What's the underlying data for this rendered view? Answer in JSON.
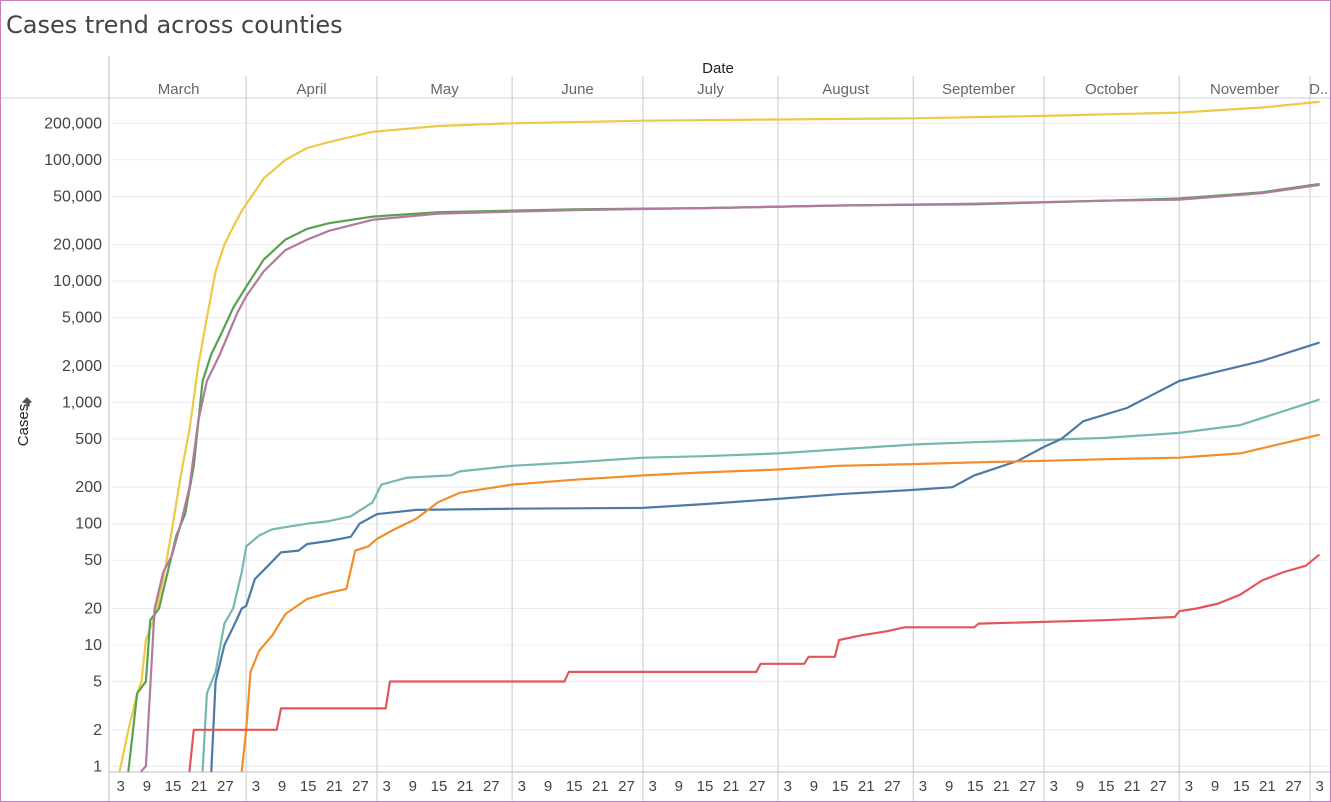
{
  "title": "Cases trend across counties",
  "chart_data": {
    "type": "line",
    "title": "Cases trend across counties",
    "xlabel": "Date",
    "ylabel": "Cases",
    "yscale": "log",
    "ylim": [
      0.8,
      300000
    ],
    "grid": true,
    "legend": "none",
    "months": [
      {
        "label": "March",
        "start": 0,
        "days": 31
      },
      {
        "label": "April",
        "start": 31,
        "days": 30
      },
      {
        "label": "May",
        "start": 61,
        "days": 31
      },
      {
        "label": "June",
        "start": 92,
        "days": 30
      },
      {
        "label": "July",
        "start": 122,
        "days": 31
      },
      {
        "label": "August",
        "start": 153,
        "days": 31
      },
      {
        "label": "September",
        "start": 184,
        "days": 30
      },
      {
        "label": "October",
        "start": 214,
        "days": 31
      },
      {
        "label": "November",
        "start": 245,
        "days": 30
      },
      {
        "label": "D..",
        "start": 275,
        "days": 4
      }
    ],
    "day_ticks": [
      3,
      9,
      15,
      21,
      27
    ],
    "y_ticks": [
      {
        "v": 1,
        "label": "1"
      },
      {
        "v": 2,
        "label": "2"
      },
      {
        "v": 5,
        "label": "5"
      },
      {
        "v": 10,
        "label": "10"
      },
      {
        "v": 20,
        "label": "20"
      },
      {
        "v": 50,
        "label": "50"
      },
      {
        "v": 100,
        "label": "100"
      },
      {
        "v": 200,
        "label": "200"
      },
      {
        "v": 500,
        "label": "500"
      },
      {
        "v": 1000,
        "label": "1,000"
      },
      {
        "v": 2000,
        "label": "2,000"
      },
      {
        "v": 5000,
        "label": "5,000"
      },
      {
        "v": 10000,
        "label": "10,000"
      },
      {
        "v": 20000,
        "label": "20,000"
      },
      {
        "v": 50000,
        "label": "50,000"
      },
      {
        "v": 100000,
        "label": "100,000"
      },
      {
        "v": 200000,
        "label": "200,000"
      }
    ],
    "series": [
      {
        "color": "#edc948",
        "points": [
          [
            "2020-03-03",
            0.8
          ],
          [
            "2020-03-05",
            2
          ],
          [
            "2020-03-07",
            4
          ],
          [
            "2020-03-08",
            5
          ],
          [
            "2020-03-09",
            11
          ],
          [
            "2020-03-11",
            17
          ],
          [
            "2020-03-13",
            35
          ],
          [
            "2020-03-15",
            90
          ],
          [
            "2020-03-17",
            250
          ],
          [
            "2020-03-19",
            600
          ],
          [
            "2020-03-21",
            2000
          ],
          [
            "2020-03-23",
            5000
          ],
          [
            "2020-03-25",
            12000
          ],
          [
            "2020-03-27",
            20000
          ],
          [
            "2020-03-29",
            28000
          ],
          [
            "2020-03-31",
            38000
          ],
          [
            "2020-04-05",
            70000
          ],
          [
            "2020-04-10",
            100000
          ],
          [
            "2020-04-15",
            125000
          ],
          [
            "2020-04-20",
            140000
          ],
          [
            "2020-04-30",
            170000
          ],
          [
            "2020-05-15",
            190000
          ],
          [
            "2020-06-01",
            200000
          ],
          [
            "2020-07-01",
            210000
          ],
          [
            "2020-08-01",
            215000
          ],
          [
            "2020-09-01",
            220000
          ],
          [
            "2020-10-01",
            230000
          ],
          [
            "2020-11-01",
            245000
          ],
          [
            "2020-11-20",
            270000
          ],
          [
            "2020-12-03",
            300000
          ]
        ]
      },
      {
        "color": "#59a14f",
        "points": [
          [
            "2020-03-05",
            0.8
          ],
          [
            "2020-03-07",
            4
          ],
          [
            "2020-03-09",
            5
          ],
          [
            "2020-03-10",
            16
          ],
          [
            "2020-03-12",
            20
          ],
          [
            "2020-03-14",
            40
          ],
          [
            "2020-03-16",
            80
          ],
          [
            "2020-03-18",
            120
          ],
          [
            "2020-03-20",
            300
          ],
          [
            "2020-03-22",
            1500
          ],
          [
            "2020-03-24",
            2500
          ],
          [
            "2020-03-26",
            3500
          ],
          [
            "2020-03-29",
            6000
          ],
          [
            "2020-04-01",
            9000
          ],
          [
            "2020-04-05",
            15000
          ],
          [
            "2020-04-10",
            22000
          ],
          [
            "2020-04-15",
            27000
          ],
          [
            "2020-04-20",
            30000
          ],
          [
            "2020-04-30",
            34000
          ],
          [
            "2020-05-15",
            37000
          ],
          [
            "2020-06-15",
            39000
          ],
          [
            "2020-07-15",
            40000
          ],
          [
            "2020-08-15",
            42000
          ],
          [
            "2020-09-15",
            43000
          ],
          [
            "2020-10-15",
            46000
          ],
          [
            "2020-11-01",
            48000
          ],
          [
            "2020-11-20",
            54000
          ],
          [
            "2020-12-03",
            63000
          ]
        ]
      },
      {
        "color": "#b07aa1",
        "points": [
          [
            "2020-03-08",
            0.8
          ],
          [
            "2020-03-09",
            1
          ],
          [
            "2020-03-11",
            20
          ],
          [
            "2020-03-13",
            40
          ],
          [
            "2020-03-15",
            55
          ],
          [
            "2020-03-17",
            100
          ],
          [
            "2020-03-19",
            200
          ],
          [
            "2020-03-21",
            700
          ],
          [
            "2020-03-23",
            1500
          ],
          [
            "2020-03-26",
            2500
          ],
          [
            "2020-03-30",
            5500
          ],
          [
            "2020-04-01",
            7500
          ],
          [
            "2020-04-05",
            12000
          ],
          [
            "2020-04-10",
            18000
          ],
          [
            "2020-04-15",
            22000
          ],
          [
            "2020-04-20",
            26000
          ],
          [
            "2020-04-30",
            32000
          ],
          [
            "2020-05-15",
            36000
          ],
          [
            "2020-06-15",
            38500
          ],
          [
            "2020-07-15",
            40000
          ],
          [
            "2020-08-15",
            42000
          ],
          [
            "2020-09-15",
            43500
          ],
          [
            "2020-10-15",
            46000
          ],
          [
            "2020-11-01",
            47000
          ],
          [
            "2020-11-20",
            53000
          ],
          [
            "2020-12-03",
            62000
          ]
        ]
      },
      {
        "color": "#76b7b2",
        "points": [
          [
            "2020-03-22",
            0.8
          ],
          [
            "2020-03-23",
            4
          ],
          [
            "2020-03-25",
            6
          ],
          [
            "2020-03-27",
            15
          ],
          [
            "2020-03-29",
            20
          ],
          [
            "2020-03-31",
            40
          ],
          [
            "2020-04-01",
            65
          ],
          [
            "2020-04-04",
            80
          ],
          [
            "2020-04-07",
            90
          ],
          [
            "2020-04-11",
            95
          ],
          [
            "2020-04-15",
            100
          ],
          [
            "2020-04-20",
            105
          ],
          [
            "2020-04-25",
            115
          ],
          [
            "2020-04-30",
            150
          ],
          [
            "2020-05-02",
            210
          ],
          [
            "2020-05-08",
            240
          ],
          [
            "2020-05-18",
            250
          ],
          [
            "2020-05-20",
            270
          ],
          [
            "2020-06-01",
            300
          ],
          [
            "2020-06-15",
            320
          ],
          [
            "2020-07-01",
            350
          ],
          [
            "2020-07-15",
            360
          ],
          [
            "2020-08-01",
            380
          ],
          [
            "2020-08-15",
            410
          ],
          [
            "2020-09-01",
            450
          ],
          [
            "2020-09-15",
            470
          ],
          [
            "2020-10-01",
            490
          ],
          [
            "2020-10-15",
            510
          ],
          [
            "2020-11-01",
            560
          ],
          [
            "2020-11-15",
            650
          ],
          [
            "2020-12-03",
            1050
          ]
        ]
      },
      {
        "color": "#4e79a7",
        "points": [
          [
            "2020-03-24",
            0.8
          ],
          [
            "2020-03-25",
            5
          ],
          [
            "2020-03-27",
            10
          ],
          [
            "2020-03-29",
            14
          ],
          [
            "2020-03-31",
            20
          ],
          [
            "2020-04-01",
            21
          ],
          [
            "2020-04-03",
            35
          ],
          [
            "2020-04-06",
            45
          ],
          [
            "2020-04-09",
            58
          ],
          [
            "2020-04-13",
            60
          ],
          [
            "2020-04-15",
            68
          ],
          [
            "2020-04-20",
            72
          ],
          [
            "2020-04-25",
            78
          ],
          [
            "2020-04-27",
            100
          ],
          [
            "2020-05-01",
            120
          ],
          [
            "2020-05-10",
            130
          ],
          [
            "2020-06-01",
            133
          ],
          [
            "2020-07-01",
            135
          ],
          [
            "2020-07-15",
            145
          ],
          [
            "2020-08-01",
            160
          ],
          [
            "2020-08-15",
            175
          ],
          [
            "2020-09-01",
            190
          ],
          [
            "2020-09-10",
            200
          ],
          [
            "2020-09-15",
            250
          ],
          [
            "2020-09-25",
            330
          ],
          [
            "2020-10-01",
            430
          ],
          [
            "2020-10-05",
            500
          ],
          [
            "2020-10-10",
            700
          ],
          [
            "2020-10-20",
            900
          ],
          [
            "2020-11-01",
            1500
          ],
          [
            "2020-11-10",
            1800
          ],
          [
            "2020-11-20",
            2200
          ],
          [
            "2020-12-03",
            3100
          ]
        ]
      },
      {
        "color": "#f28e2b",
        "points": [
          [
            "2020-03-31",
            0.8
          ],
          [
            "2020-04-01",
            2
          ],
          [
            "2020-04-02",
            6
          ],
          [
            "2020-04-04",
            9
          ],
          [
            "2020-04-07",
            12
          ],
          [
            "2020-04-10",
            18
          ],
          [
            "2020-04-15",
            24
          ],
          [
            "2020-04-20",
            27
          ],
          [
            "2020-04-24",
            29
          ],
          [
            "2020-04-26",
            60
          ],
          [
            "2020-04-29",
            65
          ],
          [
            "2020-05-01",
            75
          ],
          [
            "2020-05-05",
            90
          ],
          [
            "2020-05-10",
            110
          ],
          [
            "2020-05-15",
            150
          ],
          [
            "2020-05-20",
            180
          ],
          [
            "2020-06-01",
            210
          ],
          [
            "2020-06-15",
            230
          ],
          [
            "2020-07-01",
            250
          ],
          [
            "2020-07-15",
            265
          ],
          [
            "2020-08-01",
            280
          ],
          [
            "2020-08-15",
            300
          ],
          [
            "2020-09-01",
            310
          ],
          [
            "2020-09-15",
            320
          ],
          [
            "2020-10-01",
            330
          ],
          [
            "2020-10-15",
            340
          ],
          [
            "2020-11-01",
            350
          ],
          [
            "2020-11-15",
            380
          ],
          [
            "2020-12-03",
            540
          ]
        ]
      },
      {
        "color": "#e15759",
        "points": [
          [
            "2020-03-19",
            0.8
          ],
          [
            "2020-03-20",
            2
          ],
          [
            "2020-04-08",
            2
          ],
          [
            "2020-04-09",
            3
          ],
          [
            "2020-05-03",
            3
          ],
          [
            "2020-05-04",
            5
          ],
          [
            "2020-06-13",
            5
          ],
          [
            "2020-06-14",
            6
          ],
          [
            "2020-07-27",
            6
          ],
          [
            "2020-07-28",
            7
          ],
          [
            "2020-08-07",
            7
          ],
          [
            "2020-08-08",
            8
          ],
          [
            "2020-08-14",
            8
          ],
          [
            "2020-08-15",
            11
          ],
          [
            "2020-08-20",
            12
          ],
          [
            "2020-08-26",
            13
          ],
          [
            "2020-08-30",
            14
          ],
          [
            "2020-09-15",
            14
          ],
          [
            "2020-09-16",
            15
          ],
          [
            "2020-10-15",
            16
          ],
          [
            "2020-10-31",
            17
          ],
          [
            "2020-11-01",
            19
          ],
          [
            "2020-11-05",
            20
          ],
          [
            "2020-11-10",
            22
          ],
          [
            "2020-11-15",
            26
          ],
          [
            "2020-11-20",
            34
          ],
          [
            "2020-11-25",
            40
          ],
          [
            "2020-11-30",
            45
          ],
          [
            "2020-12-03",
            55
          ]
        ]
      }
    ]
  }
}
